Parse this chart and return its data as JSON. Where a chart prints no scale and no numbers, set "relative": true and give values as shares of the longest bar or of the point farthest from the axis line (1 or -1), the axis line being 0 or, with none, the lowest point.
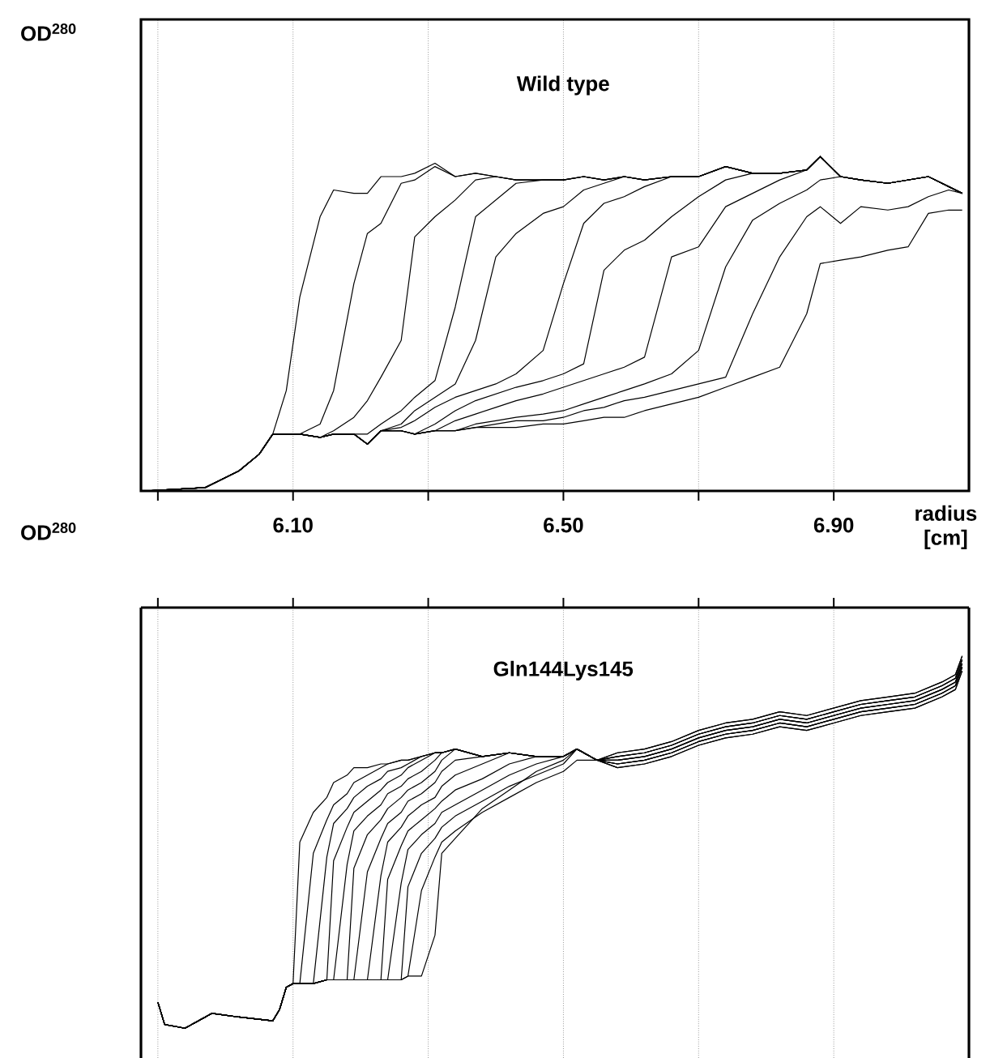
{
  "chart_data": [
    {
      "type": "line",
      "title": "Wild type",
      "ylabel": "OD$^{280}$",
      "xlabel": "radius [cm]",
      "relative": true,
      "color": "#000000",
      "marker": "none",
      "line_style": "solid",
      "grid": "x",
      "tick_labels": "x",
      "xlim": [
        5.875,
        7.1
      ],
      "xticks": [
        {
          "value": 5.9,
          "label": null
        },
        {
          "value": 6.1,
          "label": "6.10"
        },
        {
          "value": 6.3,
          "label": null
        },
        {
          "value": 6.5,
          "label": "6.50"
        },
        {
          "value": 6.7,
          "label": null
        },
        {
          "value": 6.9,
          "label": "6.90"
        }
      ],
      "x": [
        5.88,
        5.97,
        6.02,
        6.05,
        6.07,
        6.09,
        6.11,
        6.14,
        6.16,
        6.19,
        6.21,
        6.23,
        6.26,
        6.28,
        6.31,
        6.34,
        6.37,
        6.4,
        6.43,
        6.47,
        6.5,
        6.53,
        6.56,
        6.59,
        6.62,
        6.66,
        6.7,
        6.74,
        6.78,
        6.82,
        6.86,
        6.88,
        6.91,
        6.94,
        6.98,
        7.01,
        7.04,
        7.07,
        7.09
      ],
      "series": [
        {
          "values": [
            0.0,
            0.01,
            0.06,
            0.11,
            0.17,
            0.3,
            0.58,
            0.82,
            0.9,
            0.89,
            0.89,
            0.94,
            0.94,
            0.95,
            0.98,
            0.94,
            0.95,
            0.94,
            0.93,
            0.93,
            0.93,
            0.94,
            0.93,
            0.94,
            0.93,
            0.94,
            0.94,
            0.97,
            0.95,
            0.95,
            0.96,
            1.0,
            0.94,
            0.93,
            0.92,
            0.93,
            0.94,
            0.91,
            0.89
          ]
        },
        {
          "values": [
            0.0,
            0.01,
            0.06,
            0.11,
            0.17,
            0.17,
            0.17,
            0.2,
            0.3,
            0.62,
            0.77,
            0.8,
            0.92,
            0.93,
            0.97,
            0.94,
            0.95,
            0.94,
            0.93,
            0.93,
            0.93,
            0.94,
            0.93,
            0.94,
            0.93,
            0.94,
            0.94,
            0.97,
            0.95,
            0.95,
            0.96,
            1.0,
            0.94,
            0.93,
            0.92,
            0.93,
            0.94,
            0.91,
            0.89
          ]
        },
        {
          "values": [
            0.0,
            0.01,
            0.06,
            0.11,
            0.17,
            0.17,
            0.17,
            0.16,
            0.18,
            0.22,
            0.27,
            0.34,
            0.45,
            0.76,
            0.82,
            0.87,
            0.93,
            0.94,
            0.93,
            0.93,
            0.93,
            0.94,
            0.93,
            0.94,
            0.93,
            0.94,
            0.94,
            0.97,
            0.95,
            0.95,
            0.96,
            1.0,
            0.94,
            0.93,
            0.92,
            0.93,
            0.94,
            0.91,
            0.89
          ]
        },
        {
          "values": [
            0.0,
            0.01,
            0.06,
            0.11,
            0.17,
            0.17,
            0.17,
            0.16,
            0.17,
            0.17,
            0.17,
            0.2,
            0.24,
            0.28,
            0.33,
            0.55,
            0.82,
            0.87,
            0.92,
            0.93,
            0.93,
            0.94,
            0.93,
            0.94,
            0.93,
            0.94,
            0.94,
            0.97,
            0.95,
            0.95,
            0.96,
            1.0,
            0.94,
            0.93,
            0.92,
            0.93,
            0.94,
            0.91,
            0.89
          ]
        },
        {
          "values": [
            0.0,
            0.01,
            0.06,
            0.11,
            0.17,
            0.17,
            0.17,
            0.16,
            0.17,
            0.17,
            0.14,
            0.18,
            0.2,
            0.24,
            0.28,
            0.32,
            0.45,
            0.7,
            0.77,
            0.83,
            0.85,
            0.9,
            0.92,
            0.94,
            0.93,
            0.94,
            0.94,
            0.97,
            0.95,
            0.95,
            0.96,
            1.0,
            0.94,
            0.93,
            0.92,
            0.93,
            0.94,
            0.91,
            0.89
          ]
        },
        {
          "values": [
            0.0,
            0.01,
            0.06,
            0.11,
            0.17,
            0.17,
            0.17,
            0.16,
            0.17,
            0.17,
            0.14,
            0.18,
            0.19,
            0.21,
            0.25,
            0.28,
            0.3,
            0.32,
            0.35,
            0.42,
            0.62,
            0.8,
            0.86,
            0.88,
            0.91,
            0.94,
            0.94,
            0.97,
            0.95,
            0.95,
            0.96,
            1.0,
            0.94,
            0.93,
            0.92,
            0.93,
            0.94,
            0.91,
            0.89
          ]
        },
        {
          "values": [
            0.0,
            0.01,
            0.06,
            0.11,
            0.17,
            0.17,
            0.17,
            0.16,
            0.17,
            0.17,
            0.14,
            0.18,
            0.18,
            0.17,
            0.2,
            0.24,
            0.27,
            0.29,
            0.31,
            0.33,
            0.35,
            0.38,
            0.66,
            0.72,
            0.75,
            0.82,
            0.88,
            0.93,
            0.95,
            0.95,
            0.96,
            1.0,
            0.94,
            0.93,
            0.92,
            0.93,
            0.94,
            0.91,
            0.89
          ]
        },
        {
          "values": [
            0.0,
            0.01,
            0.06,
            0.11,
            0.17,
            0.17,
            0.17,
            0.16,
            0.17,
            0.17,
            0.14,
            0.18,
            0.18,
            0.17,
            0.18,
            0.21,
            0.23,
            0.25,
            0.27,
            0.29,
            0.31,
            0.33,
            0.35,
            0.37,
            0.4,
            0.7,
            0.73,
            0.85,
            0.89,
            0.93,
            0.96,
            1.0,
            0.94,
            0.93,
            0.92,
            0.93,
            0.94,
            0.91,
            0.89
          ]
        },
        {
          "values": [
            0.0,
            0.01,
            0.06,
            0.11,
            0.17,
            0.17,
            0.17,
            0.16,
            0.17,
            0.17,
            0.14,
            0.18,
            0.18,
            0.17,
            0.18,
            0.18,
            0.2,
            0.21,
            0.22,
            0.23,
            0.24,
            0.26,
            0.28,
            0.3,
            0.32,
            0.35,
            0.42,
            0.67,
            0.81,
            0.86,
            0.9,
            0.93,
            0.94,
            0.93,
            0.92,
            0.93,
            0.94,
            0.91,
            0.89
          ]
        },
        {
          "values": [
            0.0,
            0.01,
            0.06,
            0.11,
            0.17,
            0.17,
            0.17,
            0.16,
            0.17,
            0.17,
            0.14,
            0.18,
            0.18,
            0.17,
            0.18,
            0.18,
            0.19,
            0.2,
            0.21,
            0.21,
            0.22,
            0.24,
            0.25,
            0.27,
            0.28,
            0.3,
            0.32,
            0.34,
            0.53,
            0.7,
            0.82,
            0.85,
            0.8,
            0.85,
            0.84,
            0.85,
            0.88,
            0.9,
            0.89
          ]
        },
        {
          "values": [
            0.0,
            0.01,
            0.06,
            0.11,
            0.17,
            0.17,
            0.17,
            0.16,
            0.17,
            0.17,
            0.14,
            0.18,
            0.18,
            0.17,
            0.18,
            0.18,
            0.19,
            0.19,
            0.19,
            0.2,
            0.2,
            0.21,
            0.22,
            0.22,
            0.24,
            0.26,
            0.28,
            0.31,
            0.34,
            0.37,
            0.53,
            0.68,
            0.69,
            0.7,
            0.72,
            0.73,
            0.83,
            0.84,
            0.84
          ]
        }
      ]
    },
    {
      "type": "line",
      "title": "Gln144Lys145",
      "ylabel": "OD$^{280}$",
      "relative": true,
      "color": "#000000",
      "marker": "none",
      "line_style": "solid",
      "grid": "x",
      "tick_labels": false,
      "xlim": [
        5.875,
        7.1
      ],
      "xticks": [
        {
          "value": 5.9,
          "label": null
        },
        {
          "value": 6.1,
          "label": null
        },
        {
          "value": 6.3,
          "label": null
        },
        {
          "value": 6.5,
          "label": null
        },
        {
          "value": 6.7,
          "label": null
        },
        {
          "value": 6.9,
          "label": null
        }
      ],
      "x": [
        5.9,
        5.91,
        5.94,
        5.98,
        6.02,
        6.07,
        6.08,
        6.09,
        6.1,
        6.11,
        6.13,
        6.15,
        6.16,
        6.18,
        6.19,
        6.21,
        6.23,
        6.24,
        6.26,
        6.27,
        6.29,
        6.31,
        6.32,
        6.34,
        6.38,
        6.42,
        6.46,
        6.5,
        6.52,
        6.55,
        6.58,
        6.62,
        6.66,
        6.7,
        6.74,
        6.78,
        6.82,
        6.86,
        6.9,
        6.94,
        6.98,
        7.02,
        7.06,
        7.08,
        7.09
      ],
      "series": [
        {
          "values": [
            0.07,
            0.01,
            0.0,
            0.04,
            0.03,
            0.02,
            0.05,
            0.11,
            0.12,
            0.5,
            0.58,
            0.62,
            0.66,
            0.68,
            0.7,
            0.7,
            0.71,
            0.71,
            0.72,
            0.72,
            0.73,
            0.74,
            0.74,
            0.75,
            0.73,
            0.74,
            0.73,
            0.73,
            0.75,
            0.72,
            0.74,
            0.75,
            0.77,
            0.8,
            0.82,
            0.83,
            0.85,
            0.84,
            0.86,
            0.88,
            0.89,
            0.9,
            0.93,
            0.95,
            1.0
          ]
        },
        {
          "values": [
            0.07,
            0.01,
            0.0,
            0.04,
            0.03,
            0.02,
            0.05,
            0.11,
            0.12,
            0.12,
            0.47,
            0.56,
            0.6,
            0.63,
            0.66,
            0.68,
            0.7,
            0.71,
            0.72,
            0.72,
            0.73,
            0.74,
            0.74,
            0.75,
            0.73,
            0.74,
            0.73,
            0.73,
            0.75,
            0.72,
            0.74,
            0.75,
            0.77,
            0.8,
            0.82,
            0.83,
            0.85,
            0.84,
            0.86,
            0.88,
            0.89,
            0.9,
            0.93,
            0.95,
            1.0
          ]
        },
        {
          "values": [
            0.07,
            0.01,
            0.0,
            0.04,
            0.03,
            0.02,
            0.05,
            0.11,
            0.12,
            0.12,
            0.12,
            0.46,
            0.55,
            0.59,
            0.62,
            0.65,
            0.67,
            0.69,
            0.7,
            0.71,
            0.73,
            0.74,
            0.74,
            0.75,
            0.73,
            0.74,
            0.73,
            0.73,
            0.75,
            0.72,
            0.73,
            0.74,
            0.76,
            0.79,
            0.81,
            0.82,
            0.84,
            0.83,
            0.85,
            0.87,
            0.88,
            0.89,
            0.92,
            0.94,
            0.99
          ]
        },
        {
          "values": [
            0.07,
            0.01,
            0.0,
            0.04,
            0.03,
            0.02,
            0.05,
            0.11,
            0.12,
            0.12,
            0.12,
            0.13,
            0.45,
            0.54,
            0.58,
            0.61,
            0.64,
            0.66,
            0.68,
            0.7,
            0.72,
            0.74,
            0.74,
            0.75,
            0.73,
            0.74,
            0.73,
            0.73,
            0.75,
            0.72,
            0.73,
            0.74,
            0.76,
            0.79,
            0.81,
            0.82,
            0.84,
            0.83,
            0.85,
            0.87,
            0.88,
            0.89,
            0.92,
            0.94,
            0.99
          ]
        },
        {
          "values": [
            0.07,
            0.01,
            0.0,
            0.04,
            0.03,
            0.02,
            0.05,
            0.11,
            0.12,
            0.12,
            0.12,
            0.13,
            0.13,
            0.44,
            0.53,
            0.57,
            0.6,
            0.63,
            0.65,
            0.67,
            0.69,
            0.72,
            0.74,
            0.75,
            0.73,
            0.74,
            0.73,
            0.73,
            0.75,
            0.72,
            0.73,
            0.74,
            0.76,
            0.79,
            0.81,
            0.82,
            0.84,
            0.83,
            0.85,
            0.87,
            0.88,
            0.89,
            0.92,
            0.94,
            0.99
          ]
        },
        {
          "values": [
            0.07,
            0.01,
            0.0,
            0.04,
            0.03,
            0.02,
            0.05,
            0.11,
            0.12,
            0.12,
            0.12,
            0.13,
            0.13,
            0.13,
            0.43,
            0.52,
            0.56,
            0.59,
            0.62,
            0.64,
            0.66,
            0.69,
            0.72,
            0.75,
            0.73,
            0.74,
            0.73,
            0.73,
            0.75,
            0.72,
            0.72,
            0.73,
            0.75,
            0.78,
            0.8,
            0.81,
            0.83,
            0.82,
            0.84,
            0.86,
            0.87,
            0.88,
            0.91,
            0.93,
            0.98
          ]
        },
        {
          "values": [
            0.07,
            0.01,
            0.0,
            0.04,
            0.03,
            0.02,
            0.05,
            0.11,
            0.12,
            0.12,
            0.12,
            0.13,
            0.13,
            0.13,
            0.13,
            0.42,
            0.51,
            0.55,
            0.58,
            0.61,
            0.63,
            0.66,
            0.69,
            0.72,
            0.73,
            0.74,
            0.73,
            0.73,
            0.75,
            0.72,
            0.72,
            0.73,
            0.75,
            0.78,
            0.8,
            0.81,
            0.83,
            0.82,
            0.84,
            0.86,
            0.87,
            0.88,
            0.91,
            0.93,
            0.98
          ]
        },
        {
          "values": [
            0.07,
            0.01,
            0.0,
            0.04,
            0.03,
            0.02,
            0.05,
            0.11,
            0.12,
            0.12,
            0.12,
            0.13,
            0.13,
            0.13,
            0.13,
            0.13,
            0.41,
            0.5,
            0.54,
            0.57,
            0.6,
            0.62,
            0.65,
            0.68,
            0.71,
            0.74,
            0.73,
            0.73,
            0.75,
            0.72,
            0.72,
            0.73,
            0.75,
            0.78,
            0.8,
            0.81,
            0.83,
            0.82,
            0.84,
            0.86,
            0.87,
            0.88,
            0.91,
            0.93,
            0.98
          ]
        },
        {
          "values": [
            0.07,
            0.01,
            0.0,
            0.04,
            0.03,
            0.02,
            0.05,
            0.11,
            0.12,
            0.12,
            0.12,
            0.13,
            0.13,
            0.13,
            0.13,
            0.13,
            0.13,
            0.4,
            0.49,
            0.53,
            0.56,
            0.59,
            0.61,
            0.64,
            0.67,
            0.71,
            0.73,
            0.73,
            0.75,
            0.72,
            0.71,
            0.72,
            0.74,
            0.77,
            0.79,
            0.8,
            0.82,
            0.81,
            0.83,
            0.85,
            0.86,
            0.87,
            0.9,
            0.92,
            0.97
          ]
        },
        {
          "values": [
            0.07,
            0.01,
            0.0,
            0.04,
            0.03,
            0.02,
            0.05,
            0.11,
            0.12,
            0.12,
            0.12,
            0.13,
            0.13,
            0.13,
            0.13,
            0.13,
            0.13,
            0.13,
            0.39,
            0.48,
            0.52,
            0.55,
            0.58,
            0.6,
            0.64,
            0.68,
            0.71,
            0.73,
            0.75,
            0.72,
            0.71,
            0.72,
            0.74,
            0.77,
            0.79,
            0.8,
            0.82,
            0.81,
            0.83,
            0.85,
            0.86,
            0.87,
            0.9,
            0.92,
            0.97
          ]
        },
        {
          "values": [
            0.07,
            0.01,
            0.0,
            0.04,
            0.03,
            0.02,
            0.05,
            0.11,
            0.12,
            0.12,
            0.12,
            0.13,
            0.13,
            0.13,
            0.13,
            0.13,
            0.13,
            0.13,
            0.13,
            0.38,
            0.47,
            0.51,
            0.54,
            0.57,
            0.61,
            0.65,
            0.68,
            0.71,
            0.75,
            0.72,
            0.71,
            0.72,
            0.74,
            0.77,
            0.79,
            0.8,
            0.82,
            0.81,
            0.83,
            0.85,
            0.86,
            0.87,
            0.9,
            0.92,
            0.97
          ]
        },
        {
          "values": [
            0.07,
            0.01,
            0.0,
            0.04,
            0.03,
            0.02,
            0.05,
            0.11,
            0.12,
            0.12,
            0.12,
            0.13,
            0.13,
            0.13,
            0.13,
            0.13,
            0.13,
            0.13,
            0.13,
            0.14,
            0.37,
            0.46,
            0.5,
            0.53,
            0.58,
            0.62,
            0.66,
            0.69,
            0.72,
            0.72,
            0.7,
            0.71,
            0.73,
            0.76,
            0.78,
            0.79,
            0.81,
            0.8,
            0.82,
            0.84,
            0.85,
            0.86,
            0.89,
            0.91,
            0.96
          ]
        },
        {
          "values": [
            0.07,
            0.01,
            0.0,
            0.04,
            0.03,
            0.02,
            0.05,
            0.11,
            0.12,
            0.12,
            0.12,
            0.13,
            0.13,
            0.13,
            0.13,
            0.13,
            0.13,
            0.13,
            0.13,
            0.14,
            0.14,
            0.25,
            0.47,
            0.51,
            0.59,
            0.64,
            0.69,
            0.72,
            0.75,
            0.72,
            0.7,
            0.71,
            0.73,
            0.76,
            0.78,
            0.79,
            0.81,
            0.8,
            0.82,
            0.84,
            0.85,
            0.86,
            0.89,
            0.91,
            0.96
          ]
        }
      ]
    }
  ]
}
